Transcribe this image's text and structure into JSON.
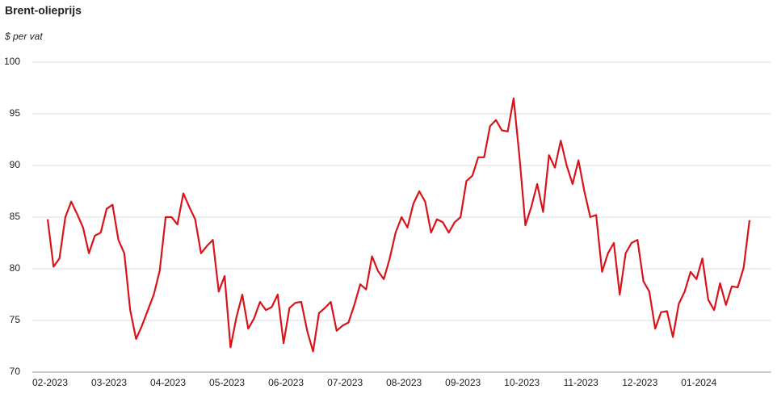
{
  "chart_data": {
    "type": "line",
    "title": "Brent-olieprijs",
    "subtitle": "$ per vat",
    "categories": [
      "02-2023",
      null,
      null,
      null,
      null,
      null,
      null,
      null,
      null,
      null,
      "03-2023",
      null,
      null,
      null,
      null,
      null,
      null,
      null,
      null,
      null,
      "04-2023",
      null,
      null,
      null,
      null,
      null,
      null,
      null,
      null,
      null,
      "05-2023",
      null,
      null,
      null,
      null,
      null,
      null,
      null,
      null,
      null,
      "06-2023",
      null,
      null,
      null,
      null,
      null,
      null,
      null,
      null,
      null,
      "07-2023",
      null,
      null,
      null,
      null,
      null,
      null,
      null,
      null,
      null,
      "08-2023",
      null,
      null,
      null,
      null,
      null,
      null,
      null,
      null,
      null,
      "09-2023",
      null,
      null,
      null,
      null,
      null,
      null,
      null,
      null,
      null,
      "10-2023",
      null,
      null,
      null,
      null,
      null,
      null,
      null,
      null,
      null,
      "11-2023",
      null,
      null,
      null,
      null,
      null,
      null,
      null,
      null,
      null,
      "12-2023",
      null,
      null,
      null,
      null,
      null,
      null,
      null,
      null,
      null,
      "01-2024",
      null,
      null,
      null,
      null,
      null,
      null,
      null,
      null,
      null
    ],
    "series": [
      {
        "name": "Brent",
        "color": "#d7141a",
        "values": [
          84.8,
          80.2,
          81,
          85,
          86.5,
          85.3,
          84,
          81.5,
          83.2,
          83.5,
          85.8,
          86.2,
          82.8,
          81.5,
          76,
          73.2,
          74.5,
          76,
          77.5,
          79.8,
          85,
          85,
          84.3,
          87.3,
          86,
          84.8,
          81.5,
          82.2,
          82.8,
          77.8,
          79.3,
          72.4,
          75.3,
          77.5,
          74.2,
          75.2,
          76.8,
          76,
          76.3,
          77.5,
          72.8,
          76.2,
          76.7,
          76.8,
          74,
          72,
          75.7,
          76.2,
          76.8,
          74,
          74.5,
          74.8,
          76.5,
          78.5,
          78,
          81.2,
          79.8,
          79,
          81,
          83.5,
          85,
          84,
          86.3,
          87.5,
          86.5,
          83.5,
          84.8,
          84.5,
          83.5,
          84.5,
          85,
          88.5,
          89,
          90.8,
          90.8,
          93.8,
          94.4,
          93.4,
          93.3,
          96.5,
          90.8,
          84.2,
          86,
          88.2,
          85.5,
          91,
          89.8,
          92.4,
          90,
          88.2,
          90.5,
          87.5,
          85,
          85.2,
          79.7,
          81.5,
          82.5,
          77.5,
          81.5,
          82.5,
          82.8,
          78.8,
          77.8,
          74.2,
          75.8,
          75.9,
          73.4,
          76.6,
          77.8,
          79.7,
          79,
          81,
          77,
          76,
          78.6,
          76.5,
          78.3,
          78.2,
          80.1,
          84.7
        ]
      }
    ],
    "ylim": [
      70,
      100
    ],
    "yticks": [
      70,
      75,
      80,
      85,
      90,
      95,
      100
    ],
    "grid": true
  }
}
